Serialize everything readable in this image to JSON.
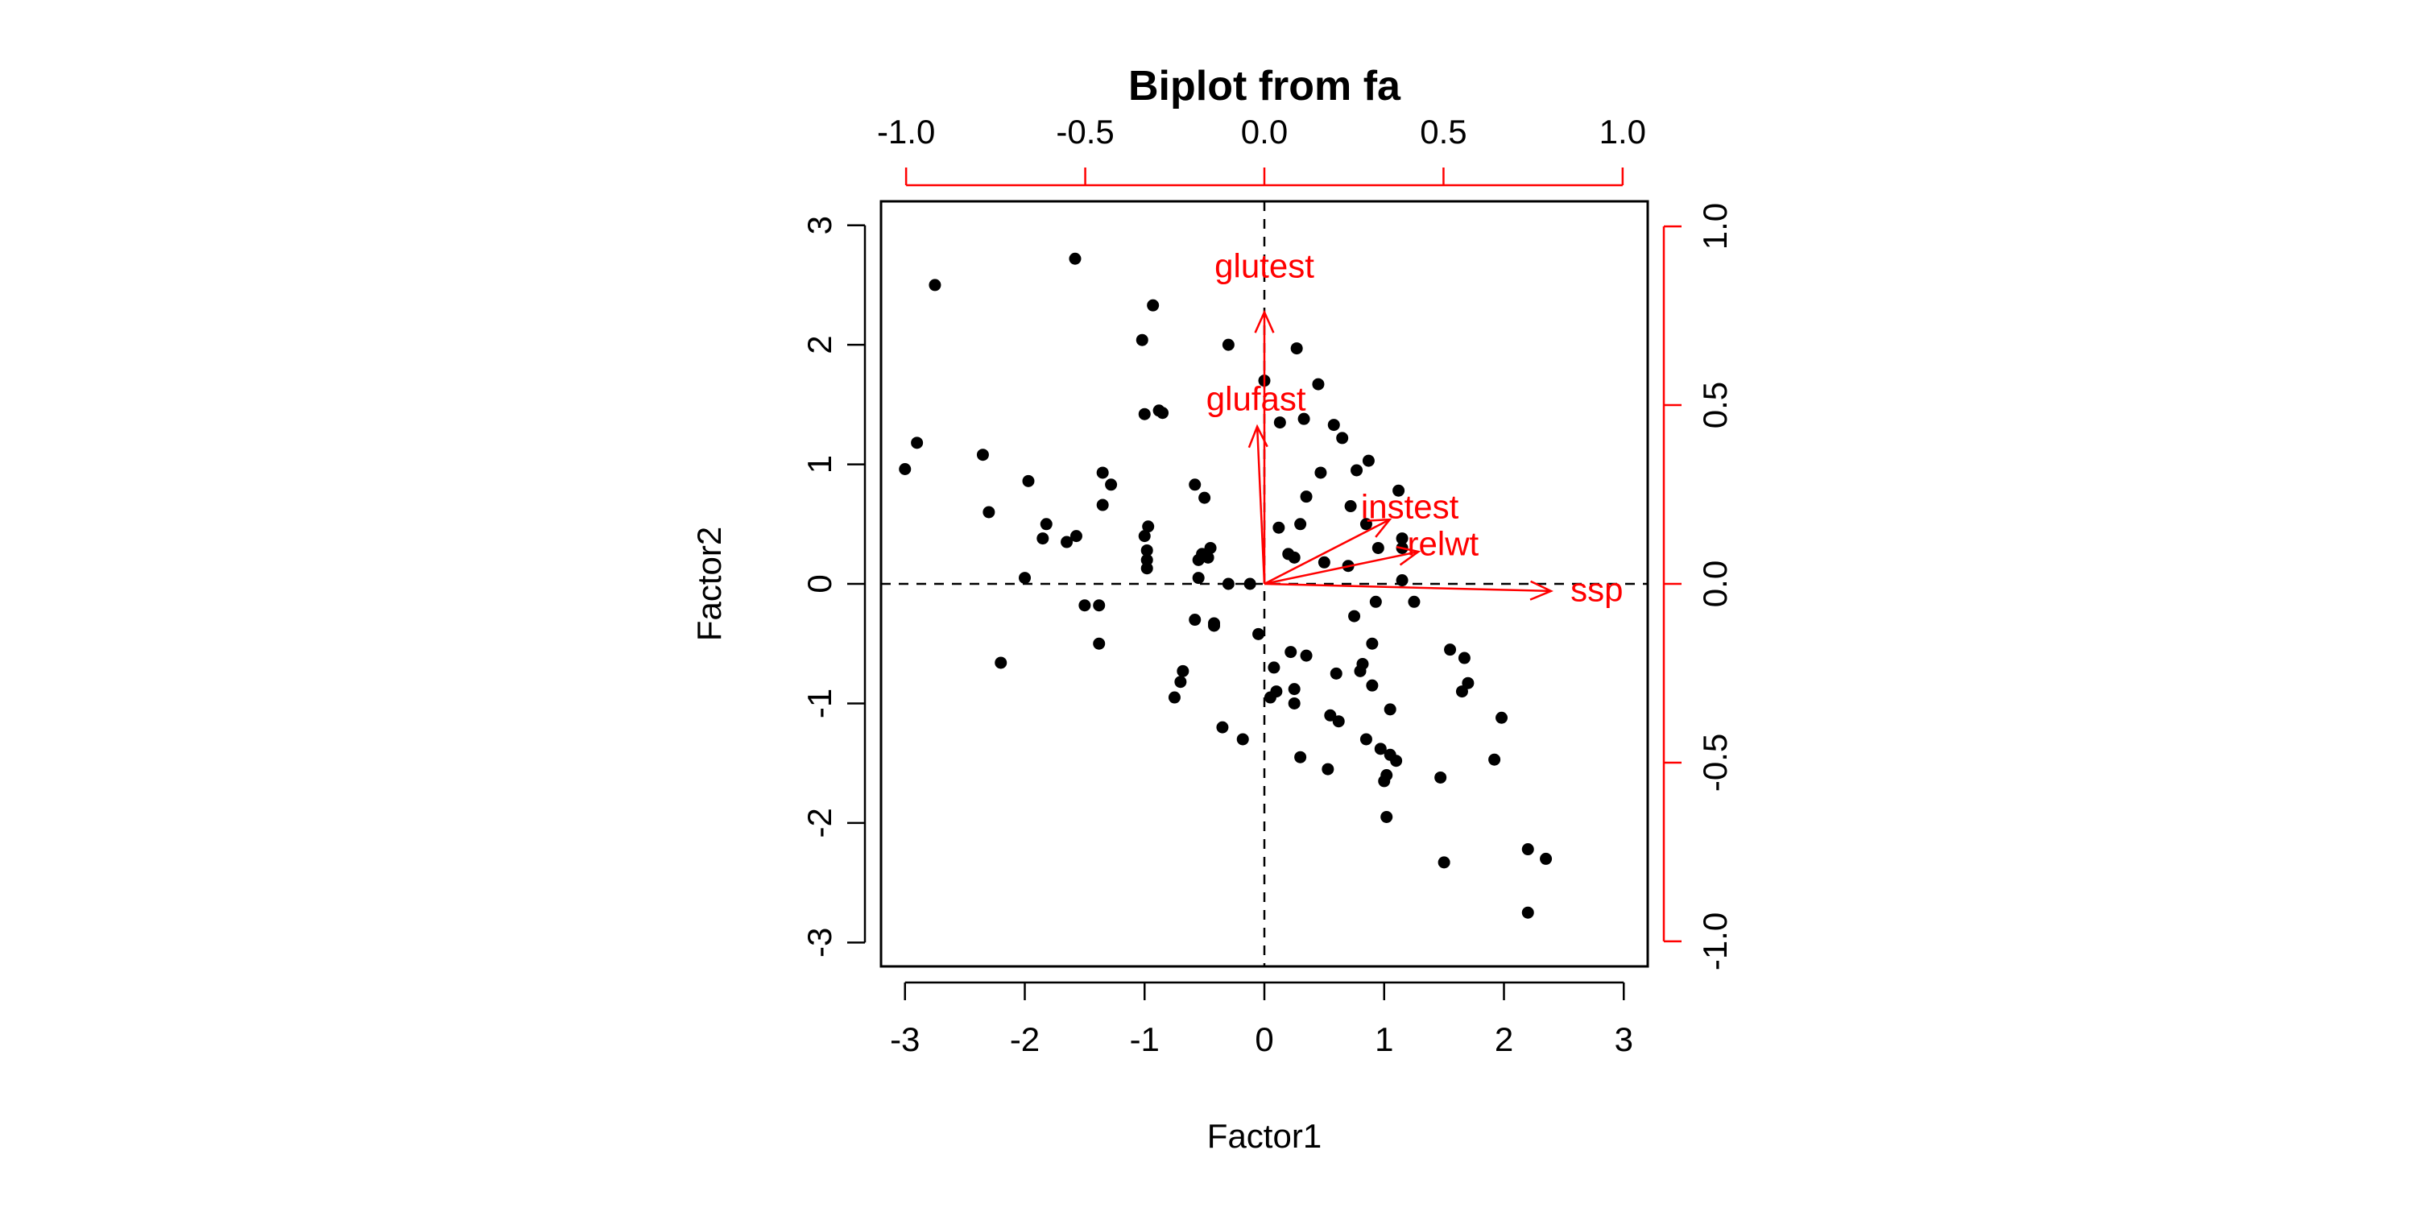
{
  "chart_data": {
    "type": "scatter",
    "title": "Biplot from fa",
    "xlabel": "Factor1",
    "ylabel": "Factor2",
    "xlim": [
      -3.2,
      3.2
    ],
    "ylim": [
      -3.2,
      3.2
    ],
    "xticks": [
      "-3",
      "-2",
      "-1",
      "0",
      "1",
      "2",
      "3"
    ],
    "yticks": [
      "-3",
      "-2",
      "-1",
      "0",
      "1",
      "2",
      "3"
    ],
    "loading_lim": [
      -1.07,
      1.07
    ],
    "top_ticks": [
      "-1.0",
      "-0.5",
      "0.0",
      "0.5",
      "1.0"
    ],
    "right_ticks": [
      "-1.0",
      "-0.5",
      "0.0",
      "0.5",
      "1.0"
    ],
    "grid": false,
    "colors": {
      "points": "#000000",
      "loadings": "#ff0000",
      "axes": "#000000"
    },
    "points": [
      [
        -3.0,
        0.96
      ],
      [
        -2.9,
        1.18
      ],
      [
        -2.75,
        2.5
      ],
      [
        -2.35,
        1.08
      ],
      [
        -2.3,
        0.6
      ],
      [
        -2.2,
        -0.66
      ],
      [
        -2.0,
        0.05
      ],
      [
        -1.97,
        0.86
      ],
      [
        -1.85,
        0.38
      ],
      [
        -1.82,
        0.5
      ],
      [
        -1.65,
        0.35
      ],
      [
        -1.58,
        2.72
      ],
      [
        -1.57,
        0.4
      ],
      [
        -1.5,
        -0.18
      ],
      [
        -1.38,
        -0.18
      ],
      [
        -1.38,
        -0.5
      ],
      [
        -1.35,
        0.93
      ],
      [
        -1.35,
        0.66
      ],
      [
        -1.28,
        0.83
      ],
      [
        -1.02,
        2.04
      ],
      [
        -1.0,
        1.42
      ],
      [
        -1.0,
        0.4
      ],
      [
        -0.98,
        0.28
      ],
      [
        -0.98,
        0.2
      ],
      [
        -0.98,
        0.13
      ],
      [
        -0.97,
        0.48
      ],
      [
        -0.93,
        2.33
      ],
      [
        -0.88,
        1.45
      ],
      [
        -0.85,
        1.43
      ],
      [
        -0.75,
        -0.95
      ],
      [
        -0.7,
        -0.82
      ],
      [
        -0.68,
        -0.73
      ],
      [
        -0.58,
        0.83
      ],
      [
        -0.58,
        -0.3
      ],
      [
        -0.55,
        0.05
      ],
      [
        -0.55,
        0.2
      ],
      [
        -0.52,
        0.25
      ],
      [
        -0.5,
        0.72
      ],
      [
        -0.47,
        0.22
      ],
      [
        -0.45,
        0.3
      ],
      [
        -0.42,
        -0.33
      ],
      [
        -0.42,
        -0.35
      ],
      [
        -0.35,
        -1.2
      ],
      [
        -0.3,
        2.0
      ],
      [
        -0.3,
        0.0
      ],
      [
        -0.18,
        -1.3
      ],
      [
        -0.12,
        0.0
      ],
      [
        -0.05,
        -0.42
      ],
      [
        0.0,
        1.7
      ],
      [
        0.05,
        -0.95
      ],
      [
        0.08,
        -0.7
      ],
      [
        0.1,
        -0.9
      ],
      [
        0.12,
        0.47
      ],
      [
        0.13,
        1.35
      ],
      [
        0.2,
        0.25
      ],
      [
        0.22,
        -0.57
      ],
      [
        0.25,
        -0.88
      ],
      [
        0.25,
        -1.0
      ],
      [
        0.25,
        0.22
      ],
      [
        0.27,
        1.97
      ],
      [
        0.3,
        0.5
      ],
      [
        0.3,
        -1.45
      ],
      [
        0.33,
        1.38
      ],
      [
        0.35,
        -0.6
      ],
      [
        0.35,
        0.73
      ],
      [
        0.45,
        1.67
      ],
      [
        0.47,
        0.93
      ],
      [
        0.5,
        0.18
      ],
      [
        0.53,
        -1.55
      ],
      [
        0.55,
        -1.1
      ],
      [
        0.58,
        1.33
      ],
      [
        0.6,
        -0.75
      ],
      [
        0.62,
        -1.15
      ],
      [
        0.65,
        1.22
      ],
      [
        0.7,
        0.15
      ],
      [
        0.72,
        0.65
      ],
      [
        0.75,
        -0.27
      ],
      [
        0.77,
        0.95
      ],
      [
        0.8,
        -0.73
      ],
      [
        0.82,
        -0.67
      ],
      [
        0.85,
        -1.3
      ],
      [
        0.85,
        0.5
      ],
      [
        0.87,
        1.03
      ],
      [
        0.9,
        -0.85
      ],
      [
        0.9,
        -0.5
      ],
      [
        0.93,
        -0.15
      ],
      [
        0.95,
        0.3
      ],
      [
        0.97,
        -1.38
      ],
      [
        1.0,
        -1.65
      ],
      [
        1.02,
        -1.6
      ],
      [
        1.02,
        -1.95
      ],
      [
        1.05,
        -1.05
      ],
      [
        1.05,
        -1.43
      ],
      [
        1.1,
        -1.48
      ],
      [
        1.12,
        0.78
      ],
      [
        1.15,
        0.3
      ],
      [
        1.15,
        0.03
      ],
      [
        1.15,
        0.38
      ],
      [
        1.25,
        -0.15
      ],
      [
        1.47,
        -1.62
      ],
      [
        1.5,
        -2.33
      ],
      [
        1.55,
        -0.55
      ],
      [
        1.65,
        -0.9
      ],
      [
        1.67,
        -0.62
      ],
      [
        1.7,
        -0.83
      ],
      [
        1.92,
        -1.47
      ],
      [
        1.98,
        -1.12
      ],
      [
        2.2,
        -2.22
      ],
      [
        2.2,
        -2.75
      ],
      [
        2.35,
        -2.3
      ]
    ],
    "loadings": [
      {
        "name": "glutest",
        "x": 0.0,
        "y": 0.76
      },
      {
        "name": "glufast",
        "x": -0.02,
        "y": 0.44
      },
      {
        "name": "instest",
        "x": 0.35,
        "y": 0.18
      },
      {
        "name": "relwt",
        "x": 0.43,
        "y": 0.09
      },
      {
        "name": "ssp",
        "x": 0.8,
        "y": -0.02
      }
    ]
  }
}
